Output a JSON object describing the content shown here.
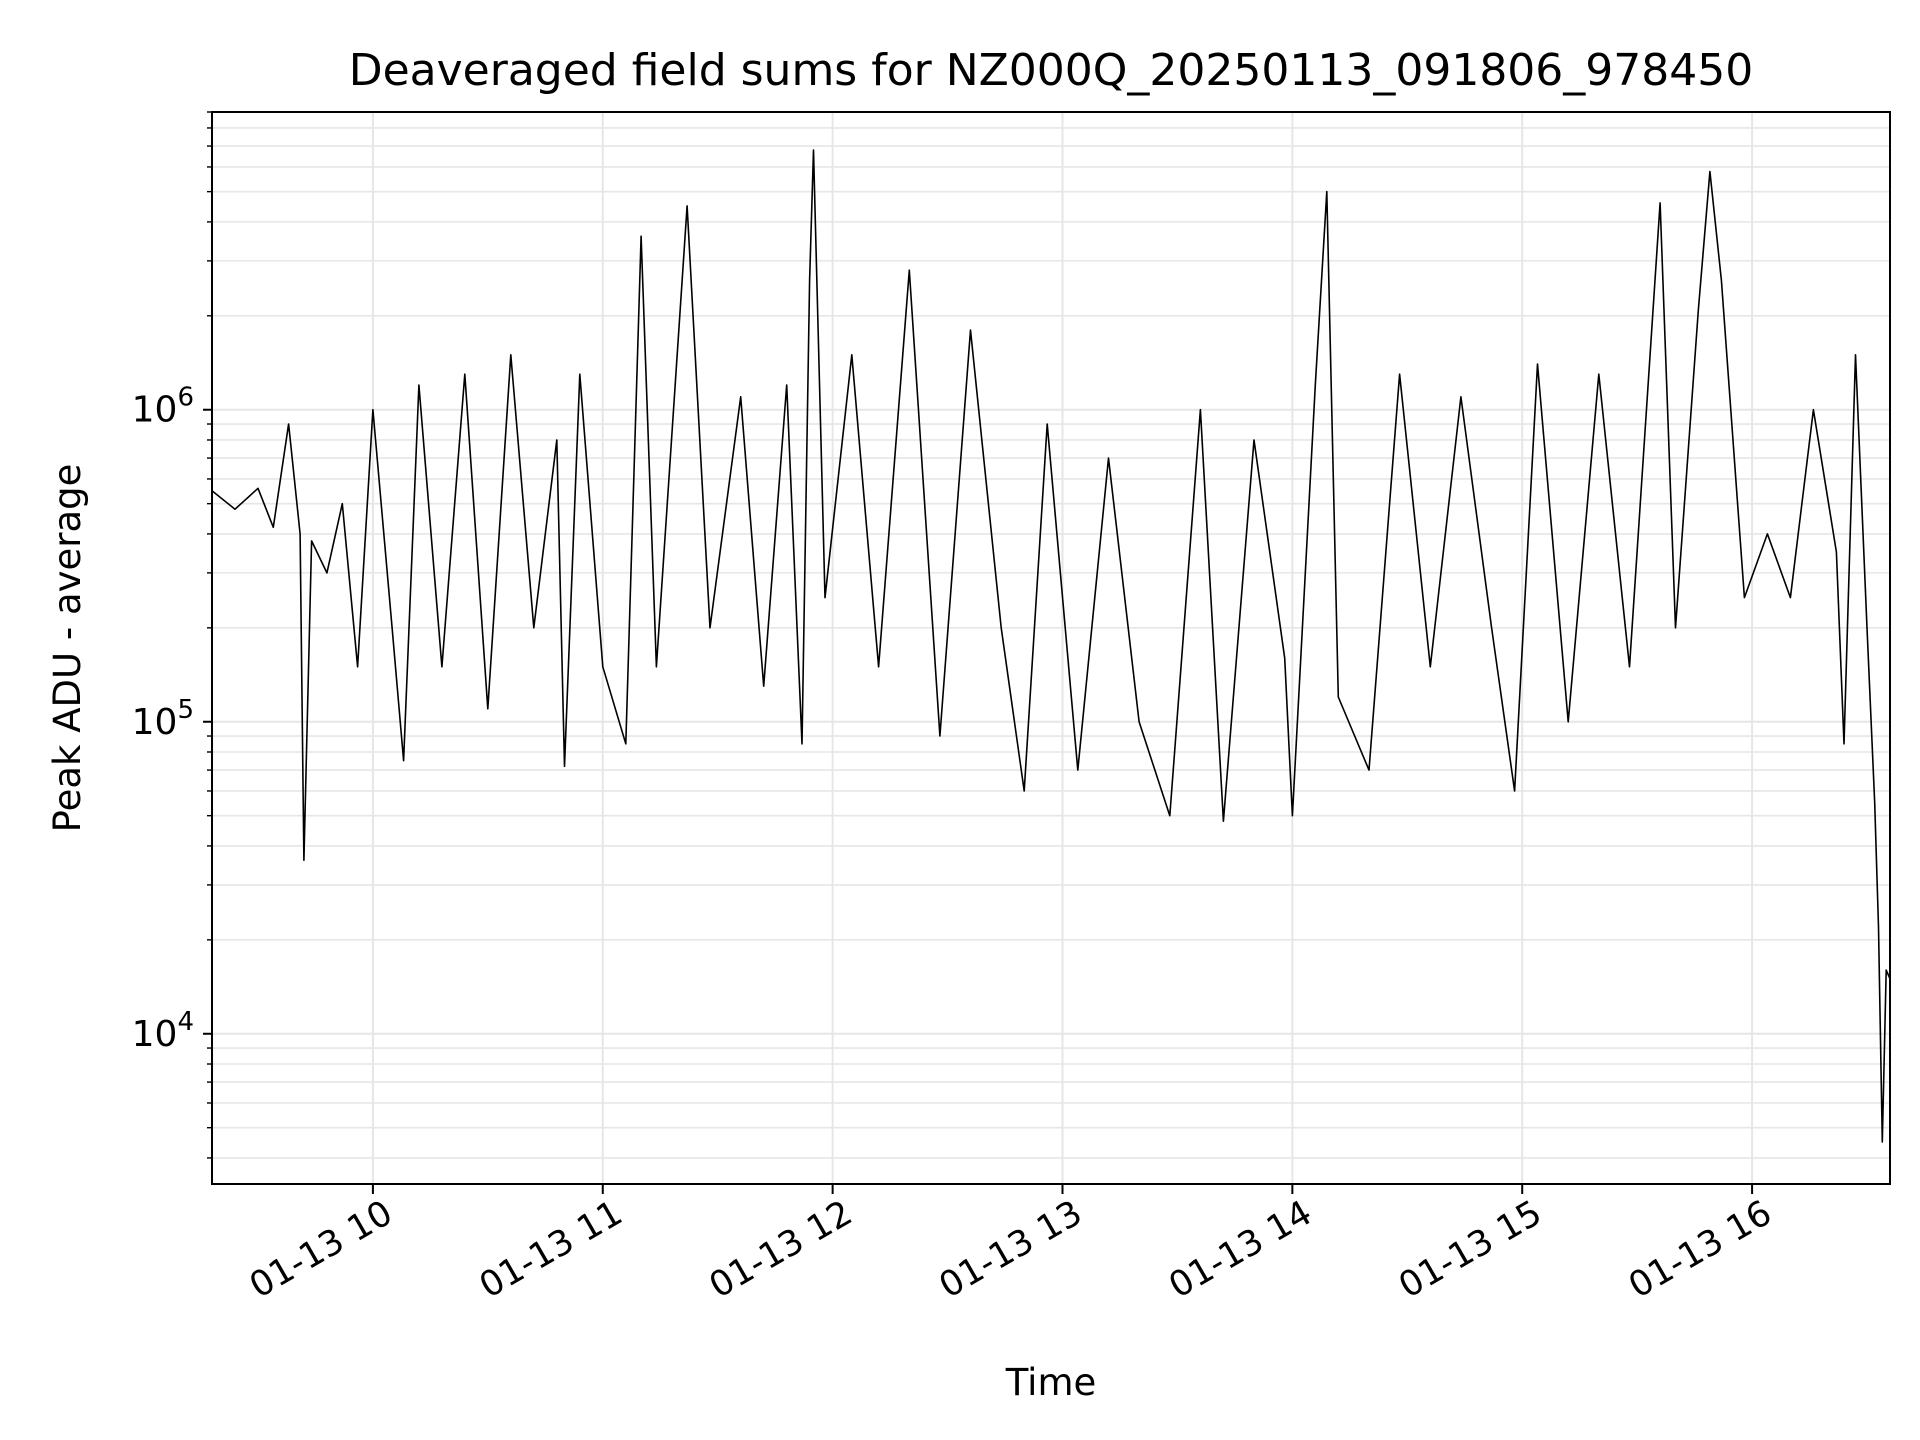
{
  "chart_data": {
    "type": "line",
    "title": "Deaveraged field sums for NZ000Q_20250113_091806_978450",
    "xlabel": "Time",
    "ylabel": "Peak ADU - average",
    "x_range": [
      "2025-01-13 09:18",
      "2025-01-13 16:36"
    ],
    "x_ticks": [
      {
        "time": "2025-01-13 10:00",
        "label": "01-13 10"
      },
      {
        "time": "2025-01-13 11:00",
        "label": "01-13 11"
      },
      {
        "time": "2025-01-13 12:00",
        "label": "01-13 12"
      },
      {
        "time": "2025-01-13 13:00",
        "label": "01-13 13"
      },
      {
        "time": "2025-01-13 14:00",
        "label": "01-13 14"
      },
      {
        "time": "2025-01-13 15:00",
        "label": "01-13 15"
      },
      {
        "time": "2025-01-13 16:00",
        "label": "01-13 16"
      }
    ],
    "y_scale": "log",
    "ylim": [
      3300,
      9000000
    ],
    "y_ticks": [
      {
        "value": 10000,
        "base": "10",
        "exp": "4"
      },
      {
        "value": 100000,
        "base": "10",
        "exp": "5"
      },
      {
        "value": 1000000,
        "base": "10",
        "exp": "6"
      }
    ],
    "grid": "major and minor",
    "line_color": "#000000",
    "grid_color": "#e6e6e6",
    "series": [
      {
        "points": [
          [
            "2025-01-13 09:18",
            550000
          ],
          [
            "2025-01-13 09:24",
            480000
          ],
          [
            "2025-01-13 09:30",
            560000
          ],
          [
            "2025-01-13 09:34",
            420000
          ],
          [
            "2025-01-13 09:38",
            900000
          ],
          [
            "2025-01-13 09:41",
            400000
          ],
          [
            "2025-01-13 09:42",
            36000
          ],
          [
            "2025-01-13 09:44",
            380000
          ],
          [
            "2025-01-13 09:48",
            300000
          ],
          [
            "2025-01-13 09:52",
            500000
          ],
          [
            "2025-01-13 09:56",
            150000
          ],
          [
            "2025-01-13 10:00",
            1000000
          ],
          [
            "2025-01-13 10:05",
            200000
          ],
          [
            "2025-01-13 10:08",
            75000
          ],
          [
            "2025-01-13 10:12",
            1200000
          ],
          [
            "2025-01-13 10:18",
            150000
          ],
          [
            "2025-01-13 10:24",
            1300000
          ],
          [
            "2025-01-13 10:30",
            110000
          ],
          [
            "2025-01-13 10:36",
            1500000
          ],
          [
            "2025-01-13 10:42",
            200000
          ],
          [
            "2025-01-13 10:48",
            800000
          ],
          [
            "2025-01-13 10:50",
            72000
          ],
          [
            "2025-01-13 10:54",
            1300000
          ],
          [
            "2025-01-13 11:00",
            150000
          ],
          [
            "2025-01-13 11:06",
            85000
          ],
          [
            "2025-01-13 11:10",
            3600000
          ],
          [
            "2025-01-13 11:14",
            150000
          ],
          [
            "2025-01-13 11:22",
            4500000
          ],
          [
            "2025-01-13 11:28",
            200000
          ],
          [
            "2025-01-13 11:36",
            1100000
          ],
          [
            "2025-01-13 11:42",
            130000
          ],
          [
            "2025-01-13 11:48",
            1200000
          ],
          [
            "2025-01-13 11:52",
            85000
          ],
          [
            "2025-01-13 11:54",
            2600000
          ],
          [
            "2025-01-13 11:55",
            6800000
          ],
          [
            "2025-01-13 11:58",
            250000
          ],
          [
            "2025-01-13 12:05",
            1500000
          ],
          [
            "2025-01-13 12:12",
            150000
          ],
          [
            "2025-01-13 12:20",
            2800000
          ],
          [
            "2025-01-13 12:28",
            90000
          ],
          [
            "2025-01-13 12:36",
            1800000
          ],
          [
            "2025-01-13 12:44",
            200000
          ],
          [
            "2025-01-13 12:50",
            60000
          ],
          [
            "2025-01-13 12:56",
            900000
          ],
          [
            "2025-01-13 13:04",
            70000
          ],
          [
            "2025-01-13 13:12",
            700000
          ],
          [
            "2025-01-13 13:20",
            100000
          ],
          [
            "2025-01-13 13:28",
            50000
          ],
          [
            "2025-01-13 13:36",
            1000000
          ],
          [
            "2025-01-13 13:42",
            48000
          ],
          [
            "2025-01-13 13:50",
            800000
          ],
          [
            "2025-01-13 13:58",
            160000
          ],
          [
            "2025-01-13 14:00",
            50000
          ],
          [
            "2025-01-13 14:06",
            1200000
          ],
          [
            "2025-01-13 14:09",
            5000000
          ],
          [
            "2025-01-13 14:12",
            120000
          ],
          [
            "2025-01-13 14:20",
            70000
          ],
          [
            "2025-01-13 14:28",
            1300000
          ],
          [
            "2025-01-13 14:36",
            150000
          ],
          [
            "2025-01-13 14:44",
            1100000
          ],
          [
            "2025-01-13 14:52",
            200000
          ],
          [
            "2025-01-13 14:58",
            60000
          ],
          [
            "2025-01-13 15:04",
            1400000
          ],
          [
            "2025-01-13 15:12",
            100000
          ],
          [
            "2025-01-13 15:20",
            1300000
          ],
          [
            "2025-01-13 15:28",
            150000
          ],
          [
            "2025-01-13 15:36",
            4600000
          ],
          [
            "2025-01-13 15:40",
            200000
          ],
          [
            "2025-01-13 15:46",
            2100000
          ],
          [
            "2025-01-13 15:49",
            5800000
          ],
          [
            "2025-01-13 15:52",
            2600000
          ],
          [
            "2025-01-13 15:58",
            250000
          ],
          [
            "2025-01-13 16:04",
            400000
          ],
          [
            "2025-01-13 16:10",
            250000
          ],
          [
            "2025-01-13 16:16",
            1000000
          ],
          [
            "2025-01-13 16:22",
            350000
          ],
          [
            "2025-01-13 16:24",
            85000
          ],
          [
            "2025-01-13 16:27",
            1500000
          ],
          [
            "2025-01-13 16:30",
            200000
          ],
          [
            "2025-01-13 16:32",
            55000
          ],
          [
            "2025-01-13 16:33",
            22000
          ],
          [
            "2025-01-13 16:34",
            4500
          ],
          [
            "2025-01-13 16:35",
            16000
          ],
          [
            "2025-01-13 16:36",
            15000
          ]
        ]
      }
    ]
  }
}
